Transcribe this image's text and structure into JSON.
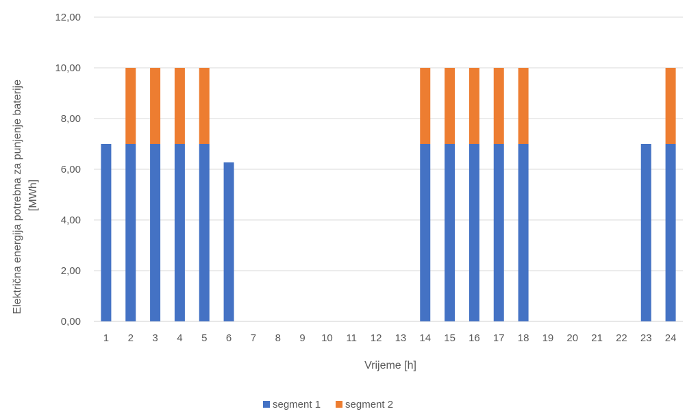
{
  "chart_data": {
    "type": "bar",
    "stacked": true,
    "categories": [
      "1",
      "2",
      "3",
      "4",
      "5",
      "6",
      "7",
      "8",
      "9",
      "10",
      "11",
      "12",
      "13",
      "14",
      "15",
      "16",
      "17",
      "18",
      "19",
      "20",
      "21",
      "22",
      "23",
      "24"
    ],
    "series": [
      {
        "name": "segment 1",
        "color": "#4472C4",
        "values": [
          7,
          7,
          7,
          7,
          7,
          6.27,
          0,
          0,
          0,
          0,
          0,
          0,
          0,
          7,
          7,
          7,
          7,
          7,
          0,
          0,
          0,
          0,
          7,
          7
        ]
      },
      {
        "name": "segment 2",
        "color": "#ED7D31",
        "values": [
          0,
          3,
          3,
          3,
          3,
          0,
          0,
          0,
          0,
          0,
          0,
          0,
          0,
          3,
          3,
          3,
          3,
          3,
          0,
          0,
          0,
          0,
          0,
          3
        ]
      }
    ],
    "yticks": [
      "0,00",
      "2,00",
      "4,00",
      "6,00",
      "8,00",
      "10,00",
      "12,00"
    ],
    "ylim": [
      0,
      12
    ],
    "xlabel": "Vrijeme [h]",
    "ylabel_lines": [
      "Električna energija potrebna za punjenje baterije",
      "[MWh]"
    ],
    "grid": true,
    "legend_position": "bottom"
  }
}
